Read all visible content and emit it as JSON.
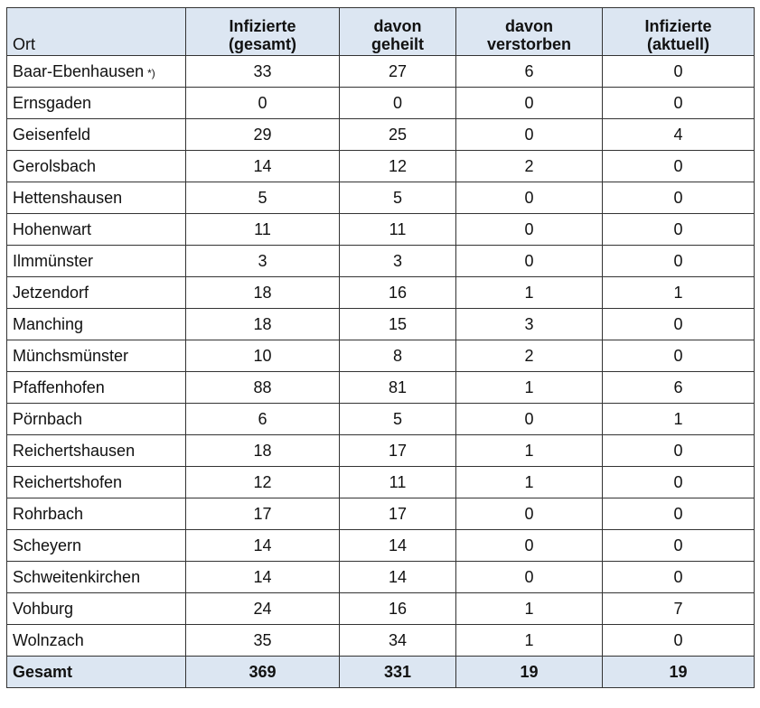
{
  "header": {
    "ort": "Ort",
    "infizierte_gesamt": [
      "Infizierte",
      "(gesamt)"
    ],
    "geheilt": [
      "davon",
      "geheilt"
    ],
    "verstorben": [
      "davon",
      "verstorben"
    ],
    "infizierte_aktuell": [
      "Infizierte",
      "(aktuell)"
    ]
  },
  "rows": [
    {
      "ort": "Baar-Ebenhausen",
      "note": "*)",
      "gesamt": "33",
      "geheilt": "27",
      "verstorben": "6",
      "aktuell": "0"
    },
    {
      "ort": "Ernsgaden",
      "gesamt": "0",
      "geheilt": "0",
      "verstorben": "0",
      "aktuell": "0"
    },
    {
      "ort": "Geisenfeld",
      "gesamt": "29",
      "geheilt": "25",
      "verstorben": "0",
      "aktuell": "4"
    },
    {
      "ort": "Gerolsbach",
      "gesamt": "14",
      "geheilt": "12",
      "verstorben": "2",
      "aktuell": "0"
    },
    {
      "ort": "Hettenshausen",
      "gesamt": "5",
      "geheilt": "5",
      "verstorben": "0",
      "aktuell": "0"
    },
    {
      "ort": "Hohenwart",
      "gesamt": "11",
      "geheilt": "11",
      "verstorben": "0",
      "aktuell": "0"
    },
    {
      "ort": "Ilmmünster",
      "gesamt": "3",
      "geheilt": "3",
      "verstorben": "0",
      "aktuell": "0"
    },
    {
      "ort": "Jetzendorf",
      "gesamt": "18",
      "geheilt": "16",
      "verstorben": "1",
      "aktuell": "1"
    },
    {
      "ort": "Manching",
      "gesamt": "18",
      "geheilt": "15",
      "verstorben": "3",
      "aktuell": "0"
    },
    {
      "ort": "Münchsmünster",
      "gesamt": "10",
      "geheilt": "8",
      "verstorben": "2",
      "aktuell": "0"
    },
    {
      "ort": "Pfaffenhofen",
      "gesamt": "88",
      "geheilt": "81",
      "verstorben": "1",
      "aktuell": "6"
    },
    {
      "ort": "Pörnbach",
      "gesamt": "6",
      "geheilt": "5",
      "verstorben": "0",
      "aktuell": "1"
    },
    {
      "ort": "Reichertshausen",
      "gesamt": "18",
      "geheilt": "17",
      "verstorben": "1",
      "aktuell": "0"
    },
    {
      "ort": "Reichertshofen",
      "gesamt": "12",
      "geheilt": "11",
      "verstorben": "1",
      "aktuell": "0"
    },
    {
      "ort": "Rohrbach",
      "gesamt": "17",
      "geheilt": "17",
      "verstorben": "0",
      "aktuell": "0"
    },
    {
      "ort": "Scheyern",
      "gesamt": "14",
      "geheilt": "14",
      "verstorben": "0",
      "aktuell": "0"
    },
    {
      "ort": "Schweitenkirchen",
      "gesamt": "14",
      "geheilt": "14",
      "verstorben": "0",
      "aktuell": "0"
    },
    {
      "ort": "Vohburg",
      "gesamt": "24",
      "geheilt": "16",
      "verstorben": "1",
      "aktuell": "7"
    },
    {
      "ort": "Wolnzach",
      "gesamt": "35",
      "geheilt": "34",
      "verstorben": "1",
      "aktuell": "0"
    }
  ],
  "total": {
    "ort": "Gesamt",
    "gesamt": "369",
    "geheilt": "331",
    "verstorben": "19",
    "aktuell": "19"
  },
  "colors": {
    "header_bg": "#dce6f2",
    "border": "#333333"
  }
}
